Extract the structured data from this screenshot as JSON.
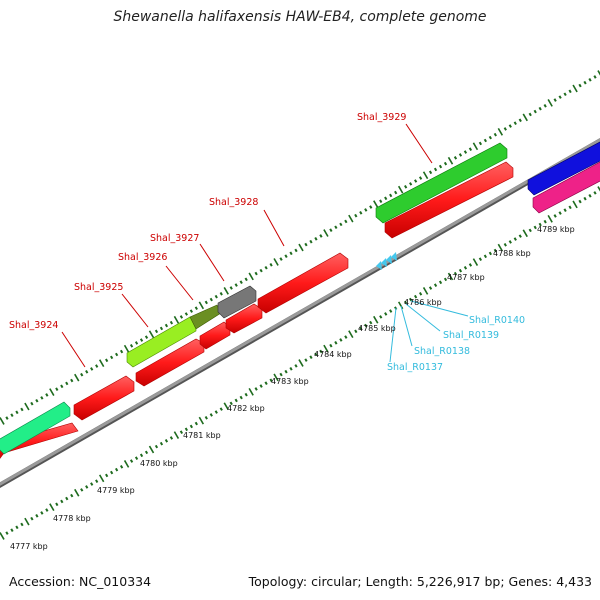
{
  "title": "Shewanella halifaxensis HAW-EB4, complete genome",
  "footer": {
    "accession": "Accession: NC_010334",
    "summary": "Topology: circular; Length: 5,226,917 bp; Genes: 4,433"
  },
  "colors": {
    "background": "#ffffff",
    "backbone": "#7f7f7f",
    "tick_green": "#1e6b1e",
    "cds_red": "#ff1a1a",
    "gene_label": "#cc0000",
    "rna_label": "#33bbdd",
    "rna_arrow": "#44c8ee"
  },
  "genes": [
    {
      "id": "Shal_3924",
      "label": "Shal_3924"
    },
    {
      "id": "Shal_3925",
      "label": "Shal_3925"
    },
    {
      "id": "Shal_3926",
      "label": "Shal_3926"
    },
    {
      "id": "Shal_3927",
      "label": "Shal_3927"
    },
    {
      "id": "Shal_3928",
      "label": "Shal_3928"
    },
    {
      "id": "Shal_3929",
      "label": "Shal_3929"
    }
  ],
  "rnas": [
    {
      "id": "Shal_R0137",
      "label": "Shal_R0137"
    },
    {
      "id": "Shal_R0138",
      "label": "Shal_R0138"
    },
    {
      "id": "Shal_R0139",
      "label": "Shal_R0139"
    },
    {
      "id": "Shal_R0140",
      "label": "Shal_R0140"
    }
  ],
  "kbp_ticks": [
    {
      "label": "4777 kbp"
    },
    {
      "label": "4778 kbp"
    },
    {
      "label": "4779 kbp"
    },
    {
      "label": "4780 kbp"
    },
    {
      "label": "4781 kbp"
    },
    {
      "label": "4782 kbp"
    },
    {
      "label": "4783 kbp"
    },
    {
      "label": "4784 kbp"
    },
    {
      "label": "4785 kbp"
    },
    {
      "label": "4786 kbp"
    },
    {
      "label": "4787 kbp"
    },
    {
      "label": "4788 kbp"
    },
    {
      "label": "4789 kbp"
    }
  ]
}
